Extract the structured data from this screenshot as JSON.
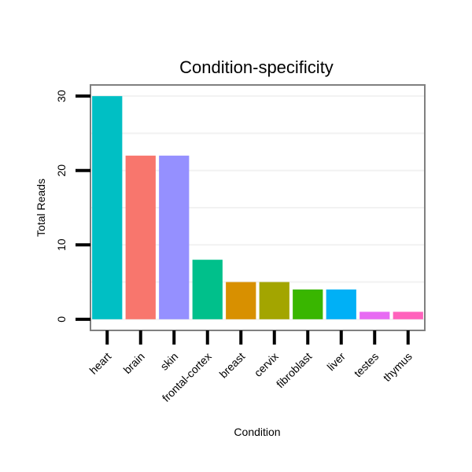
{
  "chart_data": {
    "type": "bar",
    "title": "Condition-specificity",
    "xlabel": "Condition",
    "ylabel": "Total Reads",
    "categories": [
      "heart",
      "brain",
      "skin",
      "frontal-cortex",
      "breast",
      "cervix",
      "fibroblast",
      "liver",
      "testes",
      "thymus"
    ],
    "values": [
      30,
      22,
      22,
      8,
      5,
      5,
      4,
      4,
      1,
      1
    ],
    "colors": [
      "#00BFC4",
      "#F8766D",
      "#9590FF",
      "#00C08B",
      "#D89000",
      "#A3A500",
      "#39B600",
      "#00B0F6",
      "#E76BF3",
      "#FF62BC"
    ],
    "ylim": [
      -1.5,
      31.5
    ],
    "yticks": [
      0,
      10,
      20,
      30
    ],
    "ytick_labels": [
      "0",
      "10",
      "20",
      "30"
    ],
    "grid": true,
    "legend": "none"
  }
}
